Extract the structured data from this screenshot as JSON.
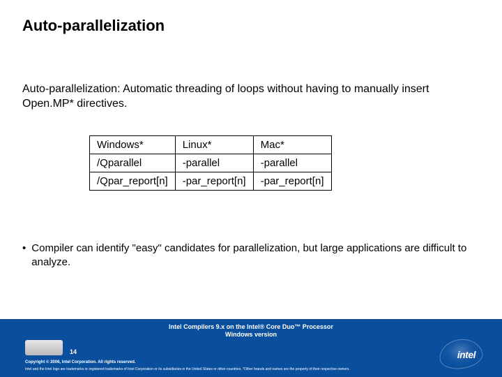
{
  "title": "Auto-parallelization",
  "subtitle": "Auto-parallelization: Automatic threading of loops without having to manually insert Open.MP* directives.",
  "table": {
    "rows": [
      [
        "Windows*",
        "Linux*",
        "Mac*"
      ],
      [
        "/Qparallel",
        "-parallel",
        "-parallel"
      ],
      [
        "/Qpar_report[n]",
        "-par_report[n]",
        "-par_report[n]"
      ]
    ],
    "border_color": "#000000",
    "text_color": "#000000",
    "font_size": 15
  },
  "bullet": {
    "marker": "•",
    "text": "Compiler can identify \"easy\" candidates for parallelization, but large applications are difficult to analyze."
  },
  "footer": {
    "band_color": "#0a4f9e",
    "title_line1": "Intel Compilers 9.x on the Intel® Core Duo™ Processor",
    "title_line2": "Windows version",
    "page_number": "14",
    "copyright": "Copyright © 2006, Intel Corporation. All rights reserved.",
    "trademark": "Intel and the Intel logo are trademarks or registered trademarks of Intel Corporation or its subsidiaries in the United States or other countries. *Other brands and names are the property of their respective owners.",
    "logo_text": "intel"
  },
  "colors": {
    "background": "#ffffff",
    "text": "#000000",
    "footer_text": "#ffffff"
  }
}
